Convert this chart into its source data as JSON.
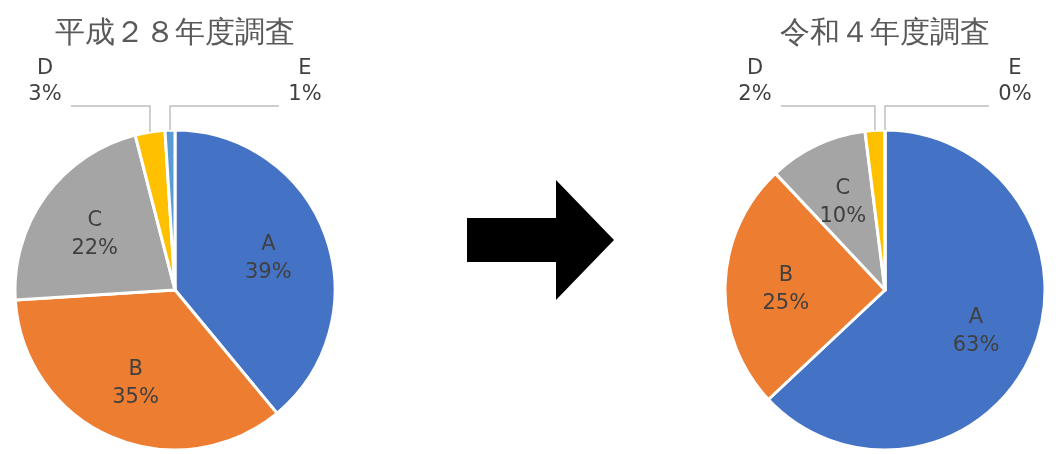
{
  "chart_data": [
    {
      "type": "pie",
      "title": "平成２８年度調査",
      "categories": [
        "A",
        "B",
        "C",
        "D",
        "E"
      ],
      "values": [
        39,
        35,
        22,
        3,
        1
      ],
      "colors": [
        "#4472c4",
        "#ed7d31",
        "#a5a5a5",
        "#ffc000",
        "#5b9bd5"
      ],
      "value_labels": [
        "39%",
        "35%",
        "22%",
        "3%",
        "1%"
      ]
    },
    {
      "type": "pie",
      "title": "令和４年度調査",
      "categories": [
        "A",
        "B",
        "C",
        "D",
        "E"
      ],
      "values": [
        63,
        25,
        10,
        2,
        0
      ],
      "colors": [
        "#4472c4",
        "#ed7d31",
        "#a5a5a5",
        "#ffc000",
        "#5b9bd5"
      ],
      "value_labels": [
        "63%",
        "25%",
        "10%",
        "2%",
        "0%"
      ]
    }
  ]
}
